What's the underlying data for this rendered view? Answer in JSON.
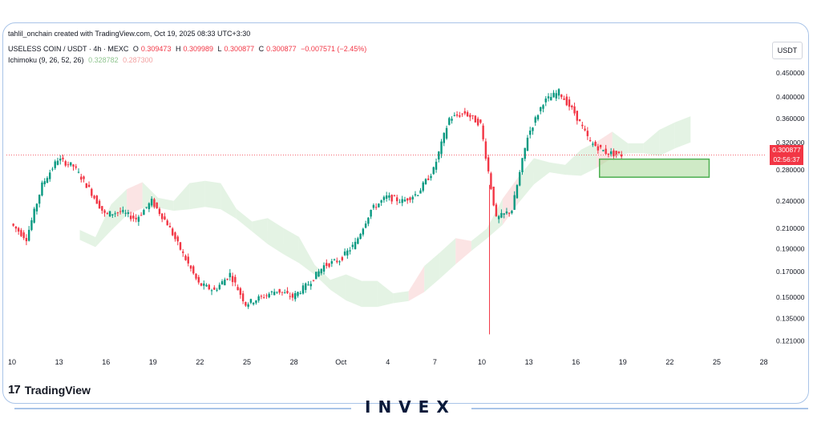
{
  "header": {
    "created_line": "tahlil_onchain created with TradingView.com, Oct 19, 2025 08:33 UTC+3:30",
    "symbol_line": "USELESS COIN / USDT · 4h · MEXC",
    "o_label": "O",
    "o_val": "0.309473",
    "h_label": "H",
    "h_val": "0.309989",
    "l_label": "L",
    "l_val": "0.300877",
    "c_label": "C",
    "c_val": "0.300877",
    "change": "−0.007571 (−2.45%)",
    "indicator_name": "Ichimoku (9, 26, 52, 26)",
    "ichimoku_a": "0.328782",
    "ichimoku_b": "0.287300",
    "currency": "USDT"
  },
  "price_label": {
    "price": "0.300877",
    "countdown": "02:56:37"
  },
  "branding": {
    "tv_mark": "17",
    "tv_word": "TradingView",
    "brand": "INVEX"
  },
  "colors": {
    "up": "#089981",
    "down": "#f23645",
    "cloud_green": "#d8eed8",
    "cloud_red": "#f9d9d9",
    "zone": "#a8d898",
    "zone_border": "#4caf50"
  },
  "chart_data": {
    "type": "candlestick",
    "x_ticks": [
      "10",
      "13",
      "16",
      "19",
      "22",
      "25",
      "28",
      "Oct",
      "4",
      "7",
      "10",
      "13",
      "16",
      "19",
      "22",
      "25",
      "28"
    ],
    "y_ticks": [
      0.45,
      0.4,
      0.36,
      0.32,
      0.28,
      0.24,
      0.21,
      0.19,
      0.17,
      0.15,
      0.135,
      0.121
    ],
    "y_tick_labels": [
      "0.450000",
      "0.400000",
      "0.360000",
      "0.320000",
      "0.280000",
      "0.240000",
      "0.210000",
      "0.190000",
      "0.170000",
      "0.150000",
      "0.135000",
      "0.121000"
    ],
    "log_scale": true,
    "last_price": 0.300877,
    "price_path": [
      [
        "Sep 10",
        0.215
      ],
      [
        "Sep 11",
        0.2
      ],
      [
        "Sep 12",
        0.26
      ],
      [
        "Sep 13",
        0.295
      ],
      [
        "Sep 14",
        0.285
      ],
      [
        "Sep 15",
        0.255
      ],
      [
        "Sep 16",
        0.225
      ],
      [
        "Sep 17",
        0.228
      ],
      [
        "Sep 18",
        0.22
      ],
      [
        "Sep 19",
        0.24
      ],
      [
        "Sep 20",
        0.215
      ],
      [
        "Sep 21",
        0.185
      ],
      [
        "Sep 22",
        0.16
      ],
      [
        "Sep 23",
        0.155
      ],
      [
        "Sep 24",
        0.168
      ],
      [
        "Sep 25",
        0.145
      ],
      [
        "Sep 26",
        0.15
      ],
      [
        "Sep 27",
        0.155
      ],
      [
        "Sep 28",
        0.15
      ],
      [
        "Sep 29",
        0.16
      ],
      [
        "Sep 30",
        0.175
      ],
      [
        "Oct 1",
        0.18
      ],
      [
        "Oct 2",
        0.195
      ],
      [
        "Oct 3",
        0.23
      ],
      [
        "Oct 4",
        0.245
      ],
      [
        "Oct 5",
        0.24
      ],
      [
        "Oct 6",
        0.25
      ],
      [
        "Oct 7",
        0.28
      ],
      [
        "Oct 8",
        0.36
      ],
      [
        "Oct 9",
        0.37
      ],
      [
        "Oct 10",
        0.35
      ],
      [
        "Oct 11",
        0.22
      ],
      [
        "Oct 12",
        0.23
      ],
      [
        "Oct 13",
        0.33
      ],
      [
        "Oct 14",
        0.39
      ],
      [
        "Oct 15",
        0.41
      ],
      [
        "Oct 16",
        0.37
      ],
      [
        "Oct 17",
        0.32
      ],
      [
        "Oct 18",
        0.305
      ],
      [
        "Oct 19",
        0.300877
      ]
    ],
    "annotations": [
      {
        "type": "zone",
        "from_date": "Oct 17",
        "to_date": "Oct 24",
        "top": 0.295,
        "bottom": 0.27
      }
    ]
  }
}
